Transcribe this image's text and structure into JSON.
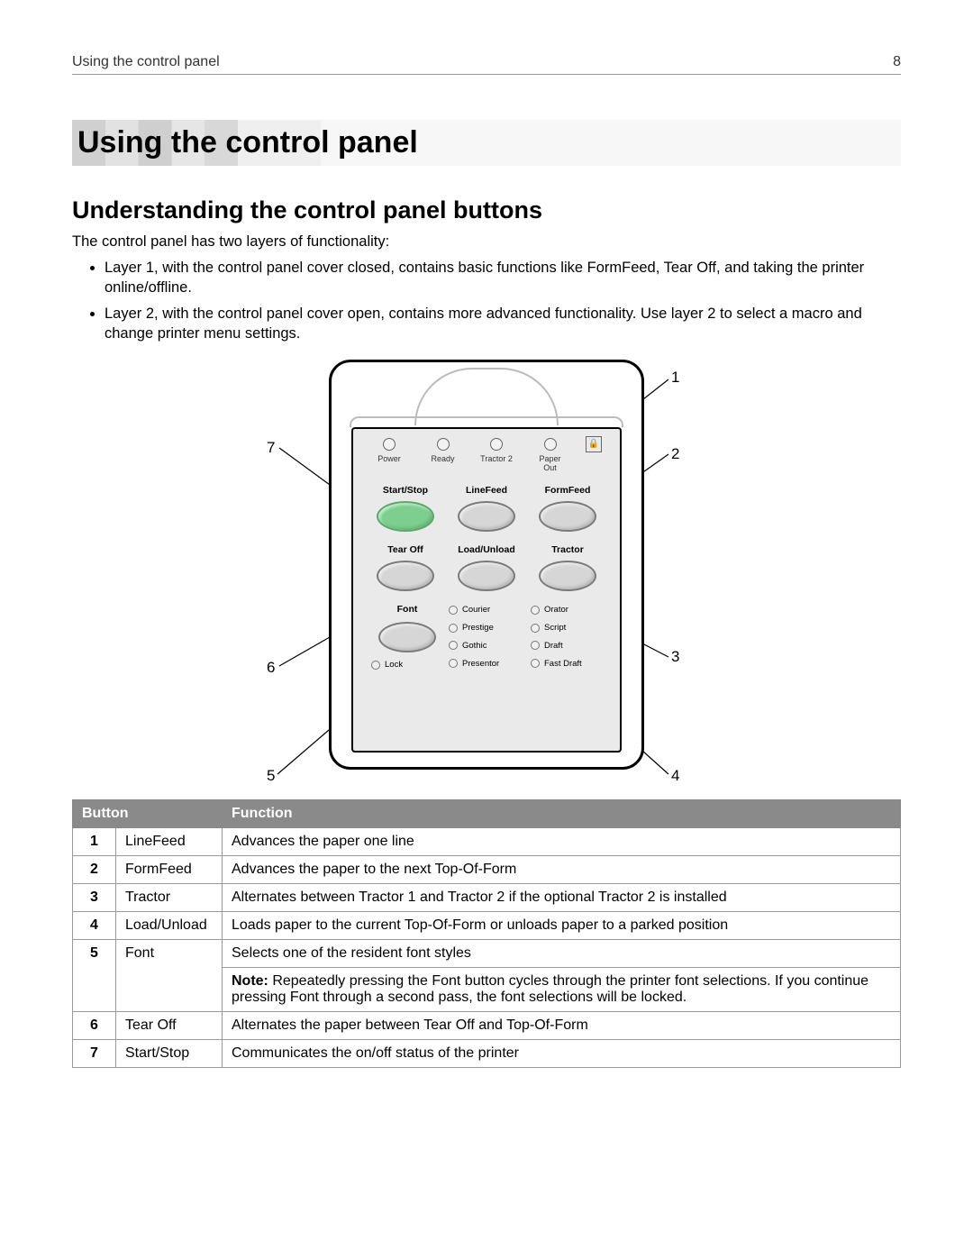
{
  "header": {
    "section": "Using the control panel",
    "page": "8"
  },
  "h1": "Using the control panel",
  "h2": "Understanding the control panel buttons",
  "intro": "The control panel has two layers of functionality:",
  "bullets": [
    "Layer 1, with the control panel cover closed, contains basic functions like FormFeed, Tear Off, and taking the printer online/offline.",
    "Layer 2, with the control panel cover open, contains more advanced functionality. Use layer 2 to select a macro and change printer menu settings."
  ],
  "panel": {
    "leds": [
      "Power",
      "Ready",
      "Tractor 2",
      "Paper\nOut"
    ],
    "row1_labels": [
      "Start/Stop",
      "LineFeed",
      "FormFeed"
    ],
    "row2_labels": [
      "Tear Off",
      "Load/Unload",
      "Tractor"
    ],
    "font_label": "Font",
    "lock_label": "Lock",
    "fonts": [
      "Courier",
      "Orator",
      "Prestige",
      "Script",
      "Gothic",
      "Draft",
      "Presentor",
      "Fast Draft"
    ]
  },
  "callouts": {
    "n1": "1",
    "n2": "2",
    "n3": "3",
    "n4": "4",
    "n5": "5",
    "n6": "6",
    "n7": "7"
  },
  "table": {
    "headers": [
      "Button",
      "Function"
    ],
    "rows": [
      {
        "n": "1",
        "name": "LineFeed",
        "fn": "Advances the paper one line"
      },
      {
        "n": "2",
        "name": "FormFeed",
        "fn": "Advances the paper to the next Top-Of-Form"
      },
      {
        "n": "3",
        "name": "Tractor",
        "fn": "Alternates between Tractor 1 and Tractor 2 if the optional Tractor 2 is installed"
      },
      {
        "n": "4",
        "name": "Load/Unload",
        "fn": "Loads paper to the current Top-Of-Form or unloads paper to a parked position"
      },
      {
        "n": "5",
        "name": "Font",
        "fn": "Selects one of the resident font styles",
        "note": "Repeatedly pressing the Font button cycles through the printer font selections. If you continue pressing Font through a second pass, the font selections will be locked."
      },
      {
        "n": "6",
        "name": "Tear Off",
        "fn": "Alternates the paper between Tear Off and Top-Of-Form"
      },
      {
        "n": "7",
        "name": "Start/Stop",
        "fn": "Communicates the on/off status of the printer"
      }
    ]
  }
}
